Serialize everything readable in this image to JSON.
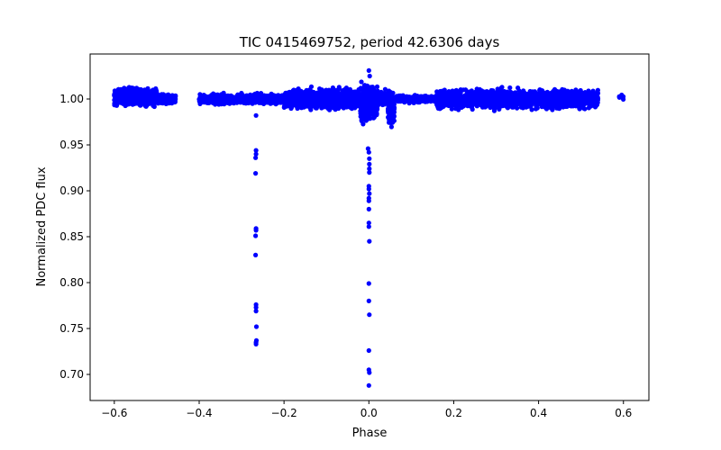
{
  "chart_data": {
    "type": "scatter",
    "title": "TIC 0415469752, period 42.6306 days",
    "xlabel": "Phase",
    "ylabel": "Normalized PDC flux",
    "xlim": [
      -0.657,
      0.66
    ],
    "ylim": [
      0.6716,
      1.049
    ],
    "xticks": [
      -0.6,
      -0.4,
      -0.2,
      0.0,
      0.2,
      0.4,
      0.6
    ],
    "xtick_labels": [
      "−0.6",
      "−0.4",
      "−0.2",
      "0.0",
      "0.2",
      "0.4",
      "0.6"
    ],
    "yticks": [
      0.7,
      0.75,
      0.8,
      0.85,
      0.9,
      0.95,
      1.0
    ],
    "ytick_labels": [
      "0.70",
      "0.75",
      "0.80",
      "0.85",
      "0.90",
      "0.95",
      "1.00"
    ],
    "color": "#0000ff",
    "grid": false,
    "dense_segments": [
      {
        "from": -0.6,
        "to": -0.5,
        "mean": 1.002,
        "spread": 0.009,
        "count": 700
      },
      {
        "from": -0.5,
        "to": -0.455,
        "mean": 1.0,
        "spread": 0.005,
        "count": 200
      },
      {
        "from": -0.4,
        "to": -0.2,
        "mean": 1.0,
        "spread": 0.005,
        "count": 900
      },
      {
        "from": -0.2,
        "to": -0.02,
        "mean": 1.0,
        "spread": 0.01,
        "count": 1200
      },
      {
        "from": -0.02,
        "to": 0.02,
        "mean": 0.995,
        "spread": 0.018,
        "count": 500
      },
      {
        "from": 0.02,
        "to": 0.045,
        "mean": 1.001,
        "spread": 0.007,
        "count": 150
      },
      {
        "from": 0.045,
        "to": 0.06,
        "mean": 0.99,
        "spread": 0.018,
        "count": 150
      },
      {
        "from": 0.06,
        "to": 0.16,
        "mean": 1.0,
        "spread": 0.004,
        "count": 300
      },
      {
        "from": 0.16,
        "to": 0.54,
        "mean": 1.0,
        "spread": 0.01,
        "count": 1800
      },
      {
        "from": 0.59,
        "to": 0.6,
        "mean": 1.002,
        "spread": 0.003,
        "count": 8
      }
    ],
    "points": [
      [
        -0.266,
        0.982
      ],
      [
        -0.266,
        0.944
      ],
      [
        -0.266,
        0.94
      ],
      [
        -0.267,
        0.936
      ],
      [
        -0.267,
        0.919
      ],
      [
        -0.266,
        0.859
      ],
      [
        -0.266,
        0.857
      ],
      [
        -0.267,
        0.851
      ],
      [
        -0.267,
        0.83
      ],
      [
        -0.266,
        0.776
      ],
      [
        -0.266,
        0.773
      ],
      [
        -0.266,
        0.769
      ],
      [
        -0.265,
        0.752
      ],
      [
        -0.265,
        0.737
      ],
      [
        -0.266,
        0.735
      ],
      [
        -0.266,
        0.733
      ],
      [
        -0.002,
        0.946
      ],
      [
        0.0,
        0.942
      ],
      [
        0.001,
        0.935
      ],
      [
        0.001,
        0.929
      ],
      [
        0.001,
        0.924
      ],
      [
        0.001,
        0.92
      ],
      [
        0.0,
        0.905
      ],
      [
        0.0,
        0.902
      ],
      [
        0.001,
        0.897
      ],
      [
        0.0,
        0.892
      ],
      [
        0.0,
        0.889
      ],
      [
        0.0,
        0.88
      ],
      [
        0.0,
        0.865
      ],
      [
        0.0,
        0.861
      ],
      [
        0.001,
        0.845
      ],
      [
        0.0,
        0.799
      ],
      [
        0.0,
        0.78
      ],
      [
        0.001,
        0.765
      ],
      [
        0.0,
        0.726
      ],
      [
        0.0,
        0.705
      ],
      [
        0.001,
        0.702
      ],
      [
        0.0,
        0.688
      ],
      [
        0.0,
        1.031
      ],
      [
        0.002,
        1.025
      ]
    ]
  }
}
